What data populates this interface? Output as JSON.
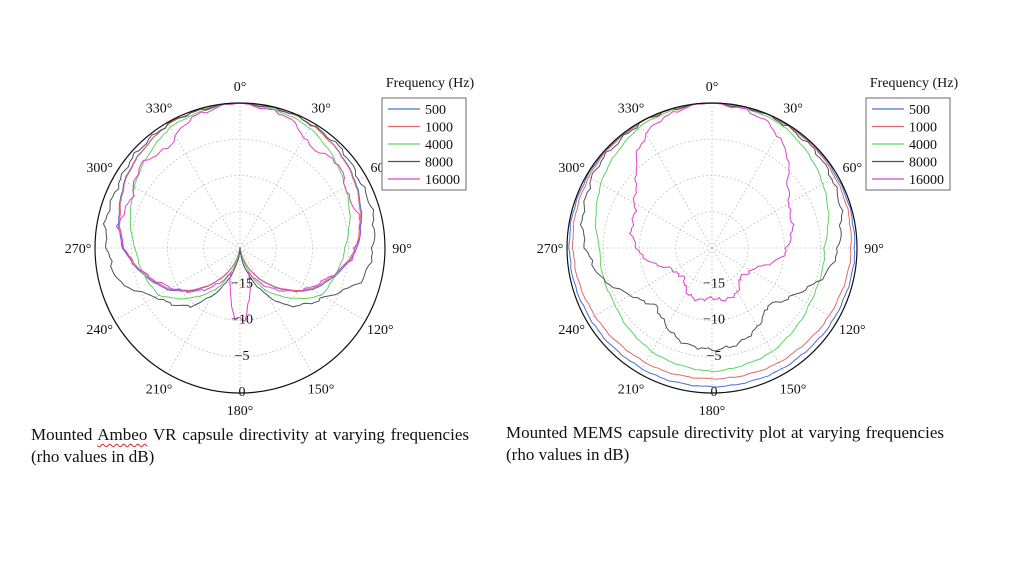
{
  "chart_data": [
    {
      "type": "polar",
      "theta_unit": "degrees",
      "rho_unit": "dB",
      "angle_ticks": [
        "0°",
        "30°",
        "60°",
        "90°",
        "120°",
        "150°",
        "180°",
        "210°",
        "240°",
        "270°",
        "300°",
        "330°"
      ],
      "rho_ticks": [
        "−15",
        "−10",
        "−5",
        "0"
      ],
      "rho_range": [
        -20,
        0
      ],
      "legend": {
        "title": "Frequency (Hz)",
        "position": "top-right"
      },
      "series": [
        {
          "name": "500",
          "color": "#4a6fd8",
          "pattern": [
            [
              0,
              0
            ],
            [
              30,
              -0.3
            ],
            [
              60,
              -1.6
            ],
            [
              90,
              -3.8
            ],
            [
              120,
              -8.5
            ],
            [
              150,
              -15.5
            ],
            [
              170,
              -19.8
            ],
            [
              180,
              -20
            ],
            [
              190,
              -19.8
            ],
            [
              210,
              -15.5
            ],
            [
              240,
              -8.5
            ],
            [
              270,
              -3.8
            ],
            [
              300,
              -1.6
            ],
            [
              330,
              -0.3
            ],
            [
              360,
              0
            ]
          ]
        },
        {
          "name": "1000",
          "color": "#e06a6a",
          "pattern": [
            [
              0,
              0
            ],
            [
              30,
              -0.3
            ],
            [
              60,
              -1.7
            ],
            [
              90,
              -4.0
            ],
            [
              120,
              -8.7
            ],
            [
              150,
              -15.6
            ],
            [
              170,
              -19.8
            ],
            [
              180,
              -20
            ],
            [
              190,
              -19.8
            ],
            [
              210,
              -15.6
            ],
            [
              240,
              -8.7
            ],
            [
              270,
              -4.0
            ],
            [
              300,
              -1.7
            ],
            [
              330,
              -0.3
            ],
            [
              360,
              0
            ]
          ]
        },
        {
          "name": "4000",
          "color": "#5fd35f",
          "pattern": [
            [
              0,
              0
            ],
            [
              30,
              -0.8
            ],
            [
              60,
              -3.2
            ],
            [
              90,
              -5.5
            ],
            [
              120,
              -7.0
            ],
            [
              150,
              -13.5
            ],
            [
              170,
              -19.5
            ],
            [
              180,
              -20
            ],
            [
              190,
              -19.5
            ],
            [
              210,
              -13.5
            ],
            [
              240,
              -7.0
            ],
            [
              270,
              -5.5
            ],
            [
              300,
              -3.2
            ],
            [
              330,
              -0.8
            ],
            [
              360,
              0
            ]
          ]
        },
        {
          "name": "8000",
          "color": "#505060",
          "pattern": [
            [
              0,
              0
            ],
            [
              20,
              -0.2
            ],
            [
              40,
              -0.4
            ],
            [
              60,
              -1.0
            ],
            [
              80,
              -1.2
            ],
            [
              90,
              -1.6
            ],
            [
              105,
              -2.6
            ],
            [
              120,
              -6.5
            ],
            [
              140,
              -9.5
            ],
            [
              160,
              -15.5
            ],
            [
              175,
              -19.5
            ],
            [
              180,
              -20
            ],
            [
              185,
              -19.5
            ],
            [
              200,
              -15.5
            ],
            [
              220,
              -9.5
            ],
            [
              240,
              -6.5
            ],
            [
              255,
              -2.6
            ],
            [
              270,
              -1.6
            ],
            [
              280,
              -1.2
            ],
            [
              300,
              -1.0
            ],
            [
              320,
              -0.4
            ],
            [
              340,
              -0.2
            ],
            [
              360,
              0
            ]
          ]
        },
        {
          "name": "16000",
          "color": "#e040d0",
          "pattern": [
            [
              0,
              0
            ],
            [
              10,
              -0.4
            ],
            [
              20,
              -0.8
            ],
            [
              35,
              -3.0
            ],
            [
              50,
              -2.2
            ],
            [
              65,
              -3.5
            ],
            [
              80,
              -3.0
            ],
            [
              95,
              -4.5
            ],
            [
              105,
              -6.5
            ],
            [
              120,
              -9.0
            ],
            [
              140,
              -12.5
            ],
            [
              160,
              -16.5
            ],
            [
              172,
              -12.0
            ],
            [
              176,
              -10.0
            ],
            [
              180,
              -10.5
            ],
            [
              184,
              -10.0
            ],
            [
              188,
              -12.0
            ],
            [
              200,
              -16.5
            ],
            [
              220,
              -12.5
            ],
            [
              240,
              -9.0
            ],
            [
              255,
              -6.5
            ],
            [
              265,
              -4.5
            ],
            [
              280,
              -3.0
            ],
            [
              295,
              -3.5
            ],
            [
              310,
              -2.2
            ],
            [
              325,
              -3.0
            ],
            [
              340,
              -0.8
            ],
            [
              350,
              -0.4
            ],
            [
              360,
              0
            ]
          ]
        }
      ]
    },
    {
      "type": "polar",
      "theta_unit": "degrees",
      "rho_unit": "dB",
      "angle_ticks": [
        "0°",
        "30°",
        "60°",
        "90°",
        "120°",
        "150°",
        "180°",
        "210°",
        "240°",
        "270°",
        "300°",
        "330°"
      ],
      "rho_ticks": [
        "−15",
        "−10",
        "−5",
        "0"
      ],
      "rho_range": [
        -20,
        0
      ],
      "legend": {
        "title": "Frequency (Hz)",
        "position": "top-right"
      },
      "series": [
        {
          "name": "500",
          "color": "#4a6fd8",
          "pattern": [
            [
              0,
              0
            ],
            [
              45,
              -0.1
            ],
            [
              90,
              -0.3
            ],
            [
              135,
              -0.7
            ],
            [
              180,
              -0.9
            ],
            [
              225,
              -0.7
            ],
            [
              270,
              -0.3
            ],
            [
              315,
              -0.1
            ],
            [
              360,
              0
            ]
          ]
        },
        {
          "name": "1000",
          "color": "#e06a6a",
          "pattern": [
            [
              0,
              0
            ],
            [
              45,
              -0.2
            ],
            [
              90,
              -0.8
            ],
            [
              135,
              -1.6
            ],
            [
              180,
              -2.0
            ],
            [
              225,
              -1.6
            ],
            [
              270,
              -0.8
            ],
            [
              315,
              -0.2
            ],
            [
              360,
              0
            ]
          ]
        },
        {
          "name": "4000",
          "color": "#5fd35f",
          "pattern": [
            [
              0,
              0
            ],
            [
              30,
              -0.5
            ],
            [
              60,
              -2.3
            ],
            [
              90,
              -4.5
            ],
            [
              120,
              -4.5
            ],
            [
              150,
              -3.5
            ],
            [
              180,
              -3.0
            ],
            [
              210,
              -3.5
            ],
            [
              240,
              -4.5
            ],
            [
              270,
              -4.5
            ],
            [
              300,
              -2.3
            ],
            [
              330,
              -0.5
            ],
            [
              360,
              0
            ]
          ]
        },
        {
          "name": "8000",
          "color": "#505060",
          "pattern": [
            [
              0,
              0
            ],
            [
              30,
              -0.2
            ],
            [
              60,
              -0.8
            ],
            [
              75,
              -1.6
            ],
            [
              90,
              -2.5
            ],
            [
              105,
              -4.2
            ],
            [
              120,
              -7.0
            ],
            [
              135,
              -9.0
            ],
            [
              150,
              -7.5
            ],
            [
              165,
              -6.2
            ],
            [
              180,
              -6.0
            ],
            [
              195,
              -6.2
            ],
            [
              210,
              -7.5
            ],
            [
              225,
              -9.0
            ],
            [
              240,
              -7.0
            ],
            [
              255,
              -4.2
            ],
            [
              270,
              -2.5
            ],
            [
              285,
              -1.6
            ],
            [
              300,
              -0.8
            ],
            [
              330,
              -0.2
            ],
            [
              360,
              0
            ]
          ]
        },
        {
          "name": "16000",
          "color": "#e040d0",
          "pattern": [
            [
              0,
              0
            ],
            [
              12,
              -0.3
            ],
            [
              25,
              -1.2
            ],
            [
              38,
              -3.2
            ],
            [
              50,
              -6.5
            ],
            [
              65,
              -8.2
            ],
            [
              80,
              -8.8
            ],
            [
              95,
              -10.0
            ],
            [
              115,
              -13.5
            ],
            [
              135,
              -14.5
            ],
            [
              150,
              -13.0
            ],
            [
              165,
              -12.5
            ],
            [
              175,
              -13.0
            ],
            [
              180,
              -13.2
            ],
            [
              185,
              -13.0
            ],
            [
              195,
              -12.5
            ],
            [
              210,
              -13.0
            ],
            [
              225,
              -14.5
            ],
            [
              245,
              -13.5
            ],
            [
              265,
              -10.0
            ],
            [
              280,
              -8.8
            ],
            [
              295,
              -8.2
            ],
            [
              310,
              -6.5
            ],
            [
              322,
              -3.2
            ],
            [
              335,
              -1.2
            ],
            [
              348,
              -0.3
            ],
            [
              360,
              0
            ]
          ]
        }
      ]
    }
  ],
  "captions": {
    "left_before": "Mounted ",
    "left_marked": "Ambeo",
    "left_after": " VR capsule directivity at varying frequencies (rho values in dB)",
    "right": "Mounted MEMS capsule directivity plot at varying frequencies (rho values in dB)"
  }
}
